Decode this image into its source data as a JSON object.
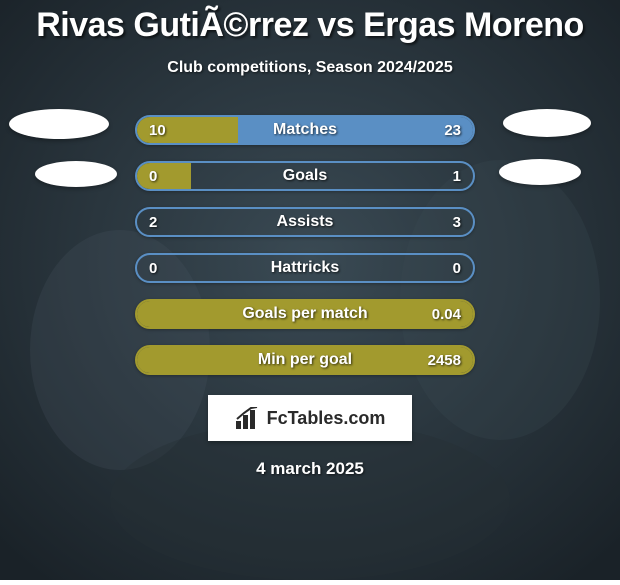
{
  "title": "Rivas GutiÃ©rrez vs Ergas Moreno",
  "subtitle": "Club competitions, Season 2024/2025",
  "footer_date": "4 march 2025",
  "logo_text": "FcTables.com",
  "background": {
    "color": "#2d3a42"
  },
  "colors": {
    "left_fill": "#a29a2e",
    "right_fill": "#5a8fc4",
    "bar_border_left": "#a29a2e",
    "bar_border_right": "#5a8fc4",
    "bar_bg": "rgba(0,0,0,0)"
  },
  "stats": [
    {
      "label": "Matches",
      "left_val": "10",
      "right_val": "23",
      "left_pct": 30,
      "right_pct": 70,
      "border": "#5a8fc4"
    },
    {
      "label": "Goals",
      "left_val": "0",
      "right_val": "1",
      "left_pct": 16,
      "right_pct": 0,
      "border": "#5a8fc4"
    },
    {
      "label": "Assists",
      "left_val": "2",
      "right_val": "3",
      "left_pct": 0,
      "right_pct": 0,
      "border": "#5a8fc4"
    },
    {
      "label": "Hattricks",
      "left_val": "0",
      "right_val": "0",
      "left_pct": 0,
      "right_pct": 0,
      "border": "#5a8fc4"
    },
    {
      "label": "Goals per match",
      "left_val": "",
      "right_val": "0.04",
      "left_pct": 100,
      "right_pct": 0,
      "border": "#a29a2e"
    },
    {
      "label": "Min per goal",
      "left_val": "",
      "right_val": "2458",
      "left_pct": 100,
      "right_pct": 0,
      "border": "#a29a2e"
    }
  ]
}
